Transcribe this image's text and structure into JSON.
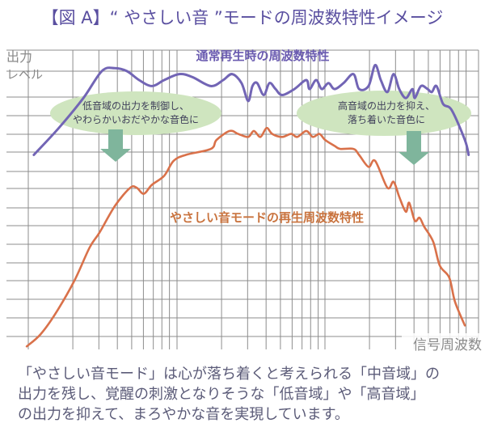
{
  "title": "【図 A】“ やさしい音 ”モードの周波数特性イメージ",
  "chart_data": {
    "type": "line",
    "title": "【図 A】“ やさしい音 ”モードの周波数特性イメージ",
    "xlabel": "信号周波数",
    "ylabel_lines": [
      "出力",
      "レベル"
    ],
    "x_scale": "log (relative position 0-100)",
    "xlim": [
      0,
      100
    ],
    "ylim": [
      0,
      100
    ],
    "grid": true,
    "series": [
      {
        "name": "通常再生時の周波数特性",
        "color": "#7265b5",
        "x": [
          5.8,
          11.1,
          16.3,
          20.2,
          22.9,
          25.5,
          28.1,
          30.8,
          33.4,
          36.6,
          39.4,
          43.3,
          45.9,
          47.8,
          49.8,
          51.2,
          52.1,
          53.1,
          54.5,
          55.7,
          57.0,
          58.4,
          61.0,
          63.5,
          64.2,
          65.6,
          66.8,
          68.2,
          69.5,
          71.4,
          73.5,
          74.7,
          76.7,
          78.1,
          79.3,
          80.7,
          82.0,
          83.2,
          84.6,
          86.0,
          86.5,
          87.8,
          89.2,
          90.1,
          91.1,
          92.5,
          94.3,
          97.1,
          97.9
        ],
        "y": [
          65,
          74,
          84,
          93,
          94,
          93,
          90,
          88,
          90,
          92,
          91,
          88,
          90,
          92,
          89,
          83,
          88,
          89,
          85,
          89,
          87,
          85,
          87,
          90,
          87,
          90,
          87,
          89,
          87,
          89,
          92,
          87,
          88,
          95,
          90,
          86,
          92,
          87,
          84,
          87,
          84,
          88,
          87,
          86,
          88,
          82,
          80,
          70,
          65
        ]
      },
      {
        "name": "やさしい音モードの再生周波数特性",
        "color": "#d9714a",
        "x": [
          4.3,
          7.2,
          10.4,
          14.4,
          17.6,
          19.7,
          23.0,
          26.2,
          27.6,
          29.1,
          30.8,
          33.4,
          35.4,
          38.0,
          43.3,
          44.5,
          47.3,
          49.1,
          51.2,
          52.4,
          53.8,
          55.1,
          56.3,
          58.4,
          60.3,
          61.6,
          63.5,
          64.9,
          66.3,
          67.5,
          69.5,
          70.7,
          73.5,
          74.7,
          76.7,
          78.1,
          80.7,
          82.0,
          83.2,
          84.6,
          85.3,
          86.5,
          87.5,
          88.5,
          90.4,
          91.8,
          93.8,
          95.0,
          97.1
        ],
        "y": [
          1,
          5,
          12,
          23,
          34,
          39,
          48,
          54,
          54,
          52,
          55,
          58,
          63,
          65,
          67,
          70,
          73,
          72,
          71,
          73,
          71,
          74,
          72,
          71,
          72,
          71,
          73,
          71,
          72,
          70,
          68,
          67,
          67,
          65,
          61,
          63,
          54,
          56,
          51,
          46,
          49,
          43,
          44,
          41,
          36,
          28,
          24,
          16,
          8
        ]
      }
    ],
    "annotations": [
      {
        "text_lines": [
          "低音域の出力を制御し、",
          "やわらかいおだやかな音色に"
        ],
        "arrow": "down"
      },
      {
        "text_lines": [
          "高音域の出力を抑え、",
          "落ち着いた音色に"
        ],
        "arrow": "down"
      }
    ]
  },
  "description_lines": [
    "「やさしい音モード」は心が落ち着くと考えられる「中音域」の",
    "出力を残し、覚醒の刺激となりそうな「低音域」や「高音域」",
    "の出力を抑えて、まろやかな音を実現しています。"
  ]
}
